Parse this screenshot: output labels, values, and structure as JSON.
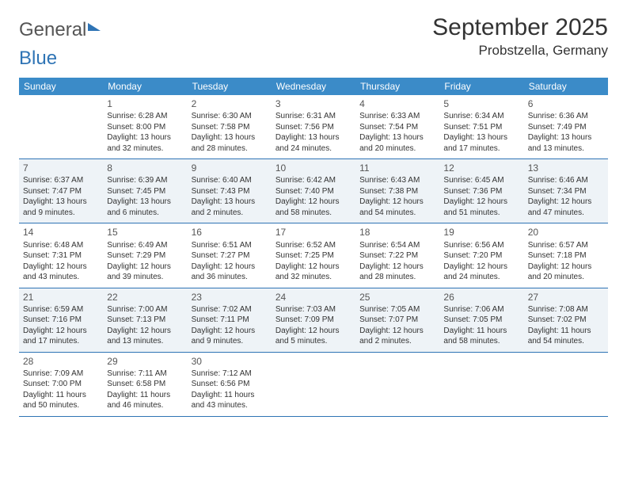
{
  "logo": {
    "word1": "General",
    "word2": "Blue"
  },
  "title": {
    "month": "September 2025",
    "location": "Probstzella, Germany"
  },
  "colors": {
    "header_bg": "#3b8bc8",
    "header_fg": "#ffffff",
    "rule": "#2f74b5",
    "shade_bg": "#eef3f7",
    "logo_blue": "#2f74b5",
    "text": "#333333"
  },
  "weekdays": [
    "Sunday",
    "Monday",
    "Tuesday",
    "Wednesday",
    "Thursday",
    "Friday",
    "Saturday"
  ],
  "weeks": [
    {
      "shade": false,
      "days": [
        {
          "num": "",
          "sunrise": "",
          "sunset": "",
          "daylight": ""
        },
        {
          "num": "1",
          "sunrise": "Sunrise: 6:28 AM",
          "sunset": "Sunset: 8:00 PM",
          "daylight": "Daylight: 13 hours and 32 minutes."
        },
        {
          "num": "2",
          "sunrise": "Sunrise: 6:30 AM",
          "sunset": "Sunset: 7:58 PM",
          "daylight": "Daylight: 13 hours and 28 minutes."
        },
        {
          "num": "3",
          "sunrise": "Sunrise: 6:31 AM",
          "sunset": "Sunset: 7:56 PM",
          "daylight": "Daylight: 13 hours and 24 minutes."
        },
        {
          "num": "4",
          "sunrise": "Sunrise: 6:33 AM",
          "sunset": "Sunset: 7:54 PM",
          "daylight": "Daylight: 13 hours and 20 minutes."
        },
        {
          "num": "5",
          "sunrise": "Sunrise: 6:34 AM",
          "sunset": "Sunset: 7:51 PM",
          "daylight": "Daylight: 13 hours and 17 minutes."
        },
        {
          "num": "6",
          "sunrise": "Sunrise: 6:36 AM",
          "sunset": "Sunset: 7:49 PM",
          "daylight": "Daylight: 13 hours and 13 minutes."
        }
      ]
    },
    {
      "shade": true,
      "days": [
        {
          "num": "7",
          "sunrise": "Sunrise: 6:37 AM",
          "sunset": "Sunset: 7:47 PM",
          "daylight": "Daylight: 13 hours and 9 minutes."
        },
        {
          "num": "8",
          "sunrise": "Sunrise: 6:39 AM",
          "sunset": "Sunset: 7:45 PM",
          "daylight": "Daylight: 13 hours and 6 minutes."
        },
        {
          "num": "9",
          "sunrise": "Sunrise: 6:40 AM",
          "sunset": "Sunset: 7:43 PM",
          "daylight": "Daylight: 13 hours and 2 minutes."
        },
        {
          "num": "10",
          "sunrise": "Sunrise: 6:42 AM",
          "sunset": "Sunset: 7:40 PM",
          "daylight": "Daylight: 12 hours and 58 minutes."
        },
        {
          "num": "11",
          "sunrise": "Sunrise: 6:43 AM",
          "sunset": "Sunset: 7:38 PM",
          "daylight": "Daylight: 12 hours and 54 minutes."
        },
        {
          "num": "12",
          "sunrise": "Sunrise: 6:45 AM",
          "sunset": "Sunset: 7:36 PM",
          "daylight": "Daylight: 12 hours and 51 minutes."
        },
        {
          "num": "13",
          "sunrise": "Sunrise: 6:46 AM",
          "sunset": "Sunset: 7:34 PM",
          "daylight": "Daylight: 12 hours and 47 minutes."
        }
      ]
    },
    {
      "shade": false,
      "days": [
        {
          "num": "14",
          "sunrise": "Sunrise: 6:48 AM",
          "sunset": "Sunset: 7:31 PM",
          "daylight": "Daylight: 12 hours and 43 minutes."
        },
        {
          "num": "15",
          "sunrise": "Sunrise: 6:49 AM",
          "sunset": "Sunset: 7:29 PM",
          "daylight": "Daylight: 12 hours and 39 minutes."
        },
        {
          "num": "16",
          "sunrise": "Sunrise: 6:51 AM",
          "sunset": "Sunset: 7:27 PM",
          "daylight": "Daylight: 12 hours and 36 minutes."
        },
        {
          "num": "17",
          "sunrise": "Sunrise: 6:52 AM",
          "sunset": "Sunset: 7:25 PM",
          "daylight": "Daylight: 12 hours and 32 minutes."
        },
        {
          "num": "18",
          "sunrise": "Sunrise: 6:54 AM",
          "sunset": "Sunset: 7:22 PM",
          "daylight": "Daylight: 12 hours and 28 minutes."
        },
        {
          "num": "19",
          "sunrise": "Sunrise: 6:56 AM",
          "sunset": "Sunset: 7:20 PM",
          "daylight": "Daylight: 12 hours and 24 minutes."
        },
        {
          "num": "20",
          "sunrise": "Sunrise: 6:57 AM",
          "sunset": "Sunset: 7:18 PM",
          "daylight": "Daylight: 12 hours and 20 minutes."
        }
      ]
    },
    {
      "shade": true,
      "days": [
        {
          "num": "21",
          "sunrise": "Sunrise: 6:59 AM",
          "sunset": "Sunset: 7:16 PM",
          "daylight": "Daylight: 12 hours and 17 minutes."
        },
        {
          "num": "22",
          "sunrise": "Sunrise: 7:00 AM",
          "sunset": "Sunset: 7:13 PM",
          "daylight": "Daylight: 12 hours and 13 minutes."
        },
        {
          "num": "23",
          "sunrise": "Sunrise: 7:02 AM",
          "sunset": "Sunset: 7:11 PM",
          "daylight": "Daylight: 12 hours and 9 minutes."
        },
        {
          "num": "24",
          "sunrise": "Sunrise: 7:03 AM",
          "sunset": "Sunset: 7:09 PM",
          "daylight": "Daylight: 12 hours and 5 minutes."
        },
        {
          "num": "25",
          "sunrise": "Sunrise: 7:05 AM",
          "sunset": "Sunset: 7:07 PM",
          "daylight": "Daylight: 12 hours and 2 minutes."
        },
        {
          "num": "26",
          "sunrise": "Sunrise: 7:06 AM",
          "sunset": "Sunset: 7:05 PM",
          "daylight": "Daylight: 11 hours and 58 minutes."
        },
        {
          "num": "27",
          "sunrise": "Sunrise: 7:08 AM",
          "sunset": "Sunset: 7:02 PM",
          "daylight": "Daylight: 11 hours and 54 minutes."
        }
      ]
    },
    {
      "shade": false,
      "days": [
        {
          "num": "28",
          "sunrise": "Sunrise: 7:09 AM",
          "sunset": "Sunset: 7:00 PM",
          "daylight": "Daylight: 11 hours and 50 minutes."
        },
        {
          "num": "29",
          "sunrise": "Sunrise: 7:11 AM",
          "sunset": "Sunset: 6:58 PM",
          "daylight": "Daylight: 11 hours and 46 minutes."
        },
        {
          "num": "30",
          "sunrise": "Sunrise: 7:12 AM",
          "sunset": "Sunset: 6:56 PM",
          "daylight": "Daylight: 11 hours and 43 minutes."
        },
        {
          "num": "",
          "sunrise": "",
          "sunset": "",
          "daylight": ""
        },
        {
          "num": "",
          "sunrise": "",
          "sunset": "",
          "daylight": ""
        },
        {
          "num": "",
          "sunrise": "",
          "sunset": "",
          "daylight": ""
        },
        {
          "num": "",
          "sunrise": "",
          "sunset": "",
          "daylight": ""
        }
      ]
    }
  ]
}
